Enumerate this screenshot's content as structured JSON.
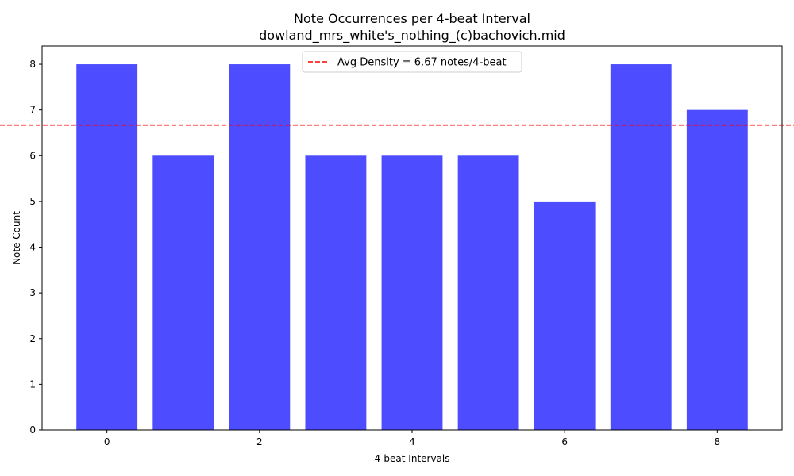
{
  "chart_data": {
    "type": "bar",
    "title": "Note Occurrences per 4-beat Interval",
    "subtitle": "dowland_mrs_white's_nothing_(c)bachovich.mid",
    "xlabel": "4-beat Intervals",
    "ylabel": "Note Count",
    "x": [
      0,
      1,
      2,
      3,
      4,
      5,
      6,
      7,
      8
    ],
    "values": [
      8,
      6,
      8,
      6,
      6,
      6,
      5,
      8,
      7
    ],
    "xlim": [
      -0.85,
      8.85
    ],
    "ylim": [
      0,
      8.4
    ],
    "xticks": [
      0,
      2,
      4,
      6,
      8
    ],
    "yticks": [
      0,
      1,
      2,
      3,
      4,
      5,
      6,
      7,
      8
    ],
    "bar_color": "#4d4dff",
    "reference_line": {
      "value": 6.67,
      "label": "Avg Density = 6.67 notes/4-beat",
      "color": "#ff0000",
      "style": "dashed"
    },
    "legend_placement": "top-center",
    "grid": false
  }
}
